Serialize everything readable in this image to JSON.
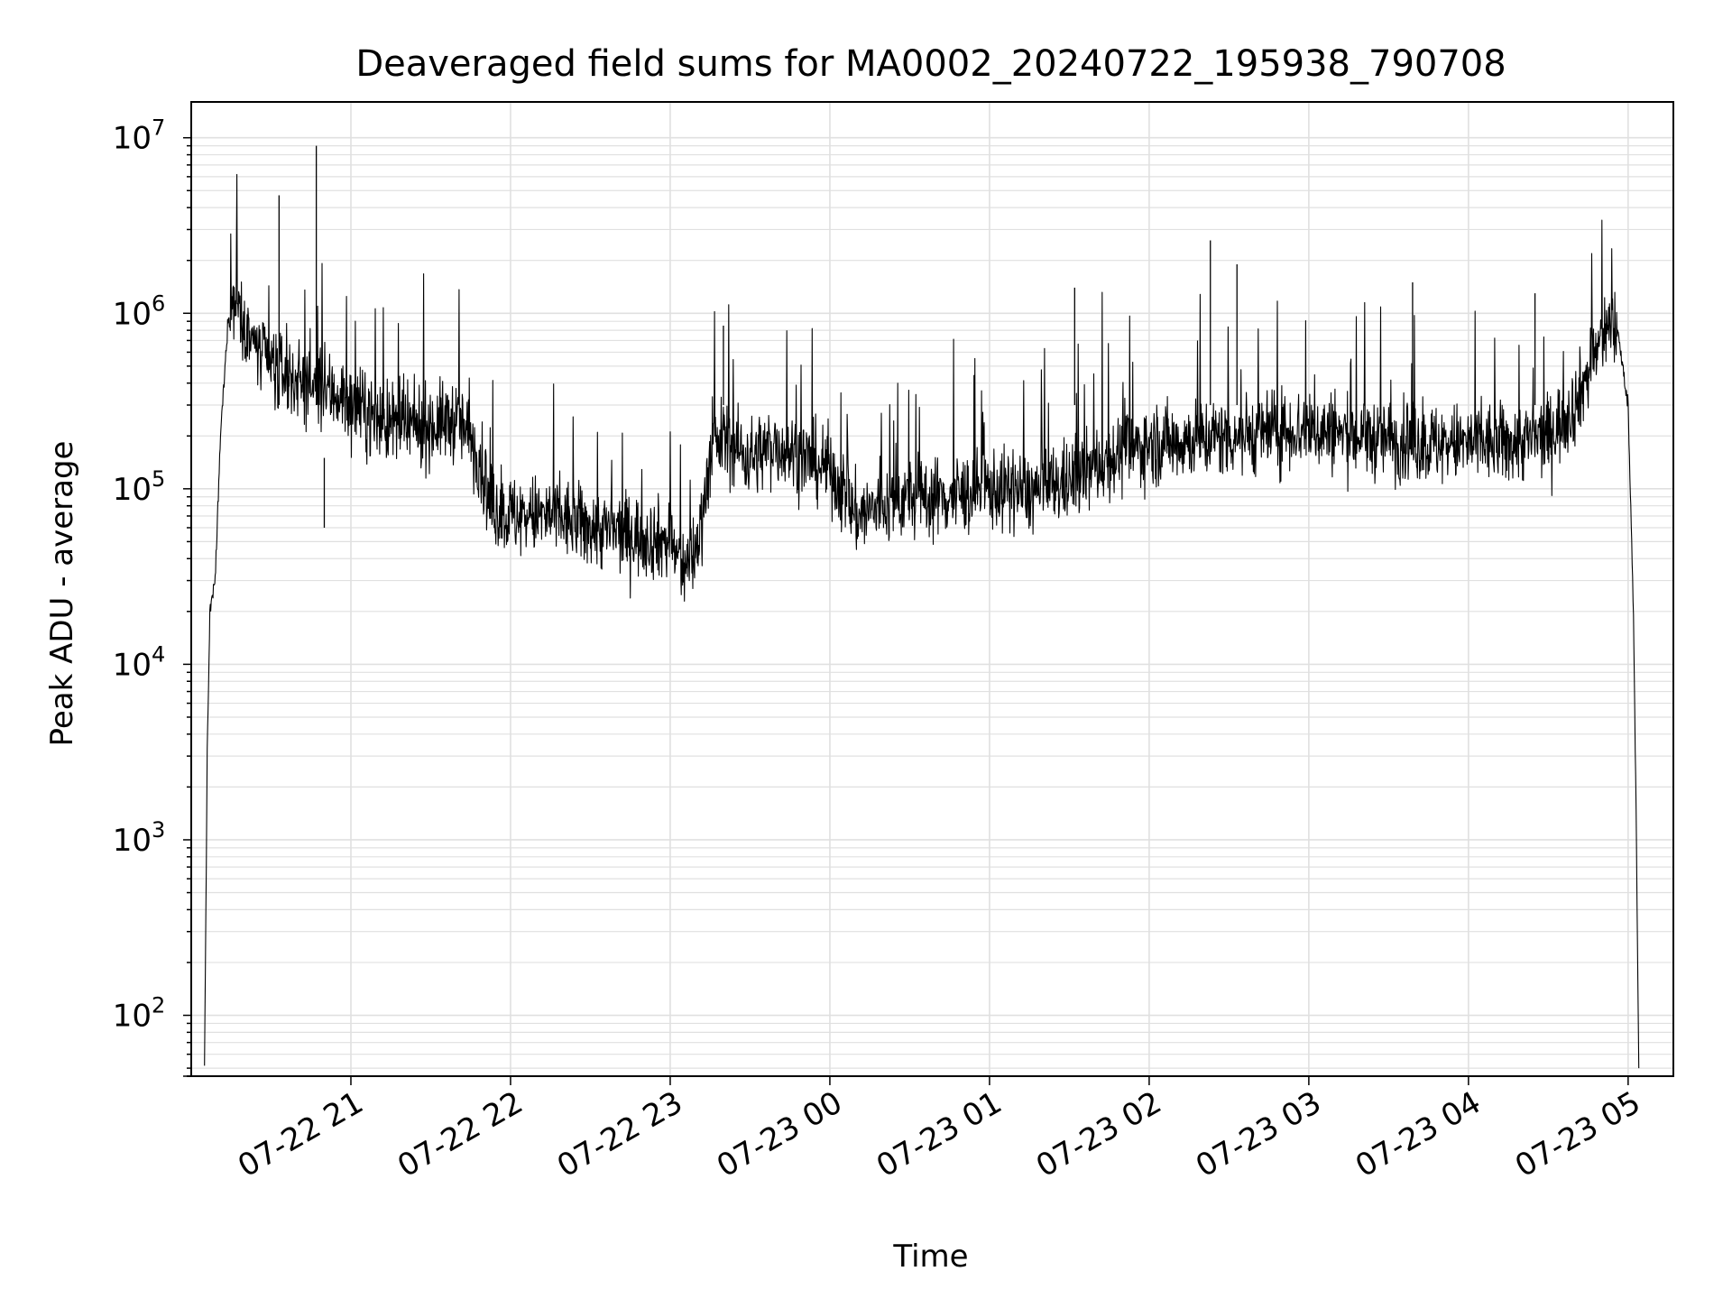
{
  "chart_data": {
    "type": "line",
    "title": "Deaveraged field sums for MA0002_20240722_195938_790708",
    "xlabel": "Time",
    "ylabel": "Peak ADU - average",
    "x_axis": {
      "kind": "datetime",
      "range": [
        "2024-07-22 20:00",
        "2024-07-23 05:17"
      ],
      "tick_values": [
        "2024-07-22 21:00",
        "2024-07-22 22:00",
        "2024-07-22 23:00",
        "2024-07-23 00:00",
        "2024-07-23 01:00",
        "2024-07-23 02:00",
        "2024-07-23 03:00",
        "2024-07-23 04:00",
        "2024-07-23 05:00"
      ],
      "tick_labels": [
        "07-22 21",
        "07-22 22",
        "07-22 23",
        "07-23 00",
        "07-23 01",
        "07-23 02",
        "07-23 03",
        "07-23 04",
        "07-23 05"
      ]
    },
    "y_axis": {
      "scale": "log",
      "range": [
        45,
        16000000
      ],
      "tick_exponents": [
        "2",
        "3",
        "4",
        "5",
        "6",
        "7"
      ],
      "tick_base": "10"
    },
    "grid": true,
    "line_color": "#000000",
    "grid_color": "#e0e0e0",
    "series": [
      {
        "x": [
          "07-22 20:05",
          "07-22 20:06",
          "07-22 20:07",
          "07-22 20:09",
          "07-22 20:11",
          "07-22 20:14",
          "07-22 20:17",
          "07-22 20:20",
          "07-22 20:25",
          "07-22 20:30",
          "07-22 20:35",
          "07-22 20:40",
          "07-22 20:45",
          "07-22 20:50",
          "07-22 20:55",
          "07-22 21:00",
          "07-22 21:10",
          "07-22 21:20",
          "07-22 21:30",
          "07-22 21:40",
          "07-22 21:48",
          "07-22 21:52",
          "07-22 22:00",
          "07-22 22:15",
          "07-22 22:30",
          "07-22 22:45",
          "07-22 23:00",
          "07-22 23:05",
          "07-22 23:10",
          "07-22 23:15",
          "07-22 23:20",
          "07-22 23:25",
          "07-22 23:30",
          "07-22 23:40",
          "07-22 23:50",
          "07-23 00:00",
          "07-23 00:10",
          "07-23 00:20",
          "07-23 00:30",
          "07-23 00:45",
          "07-23 01:00",
          "07-23 01:15",
          "07-23 01:30",
          "07-23 01:45",
          "07-23 02:00",
          "07-23 02:15",
          "07-23 02:30",
          "07-23 02:45",
          "07-23 03:00",
          "07-23 03:15",
          "07-23 03:30",
          "07-23 03:45",
          "07-23 04:00",
          "07-23 04:15",
          "07-23 04:30",
          "07-23 04:40",
          "07-23 04:48",
          "07-23 04:52",
          "07-23 04:56",
          "07-23 05:00",
          "07-23 05:02",
          "07-23 05:03",
          "07-23 05:04"
        ],
        "y": [
          50,
          3000,
          20000,
          30000,
          200000,
          1000000,
          1300000,
          900000,
          600000,
          500000,
          450000,
          420000,
          400000,
          350000,
          350000,
          300000,
          250000,
          220000,
          230000,
          250000,
          160000,
          80000,
          70000,
          70000,
          60000,
          55000,
          50000,
          35000,
          45000,
          150000,
          200000,
          170000,
          150000,
          180000,
          150000,
          130000,
          70000,
          80000,
          90000,
          90000,
          100000,
          95000,
          110000,
          150000,
          180000,
          190000,
          200000,
          210000,
          220000,
          200000,
          190000,
          180000,
          180000,
          180000,
          200000,
          300000,
          600000,
          850000,
          800000,
          300000,
          20000,
          1500,
          50
        ]
      }
    ],
    "spikes": {
      "x": [
        "07-22 20:33",
        "07-22 20:47",
        "07-22 20:50",
        "07-22 23:20",
        "07-23 01:32",
        "07-23 02:23",
        "07-23 02:33",
        "07-23 03:39",
        "07-23 04:25"
      ],
      "y": [
        4700000,
        9000000,
        60000,
        850000,
        1400000,
        2600000,
        1900000,
        1500000,
        1300000
      ]
    }
  }
}
